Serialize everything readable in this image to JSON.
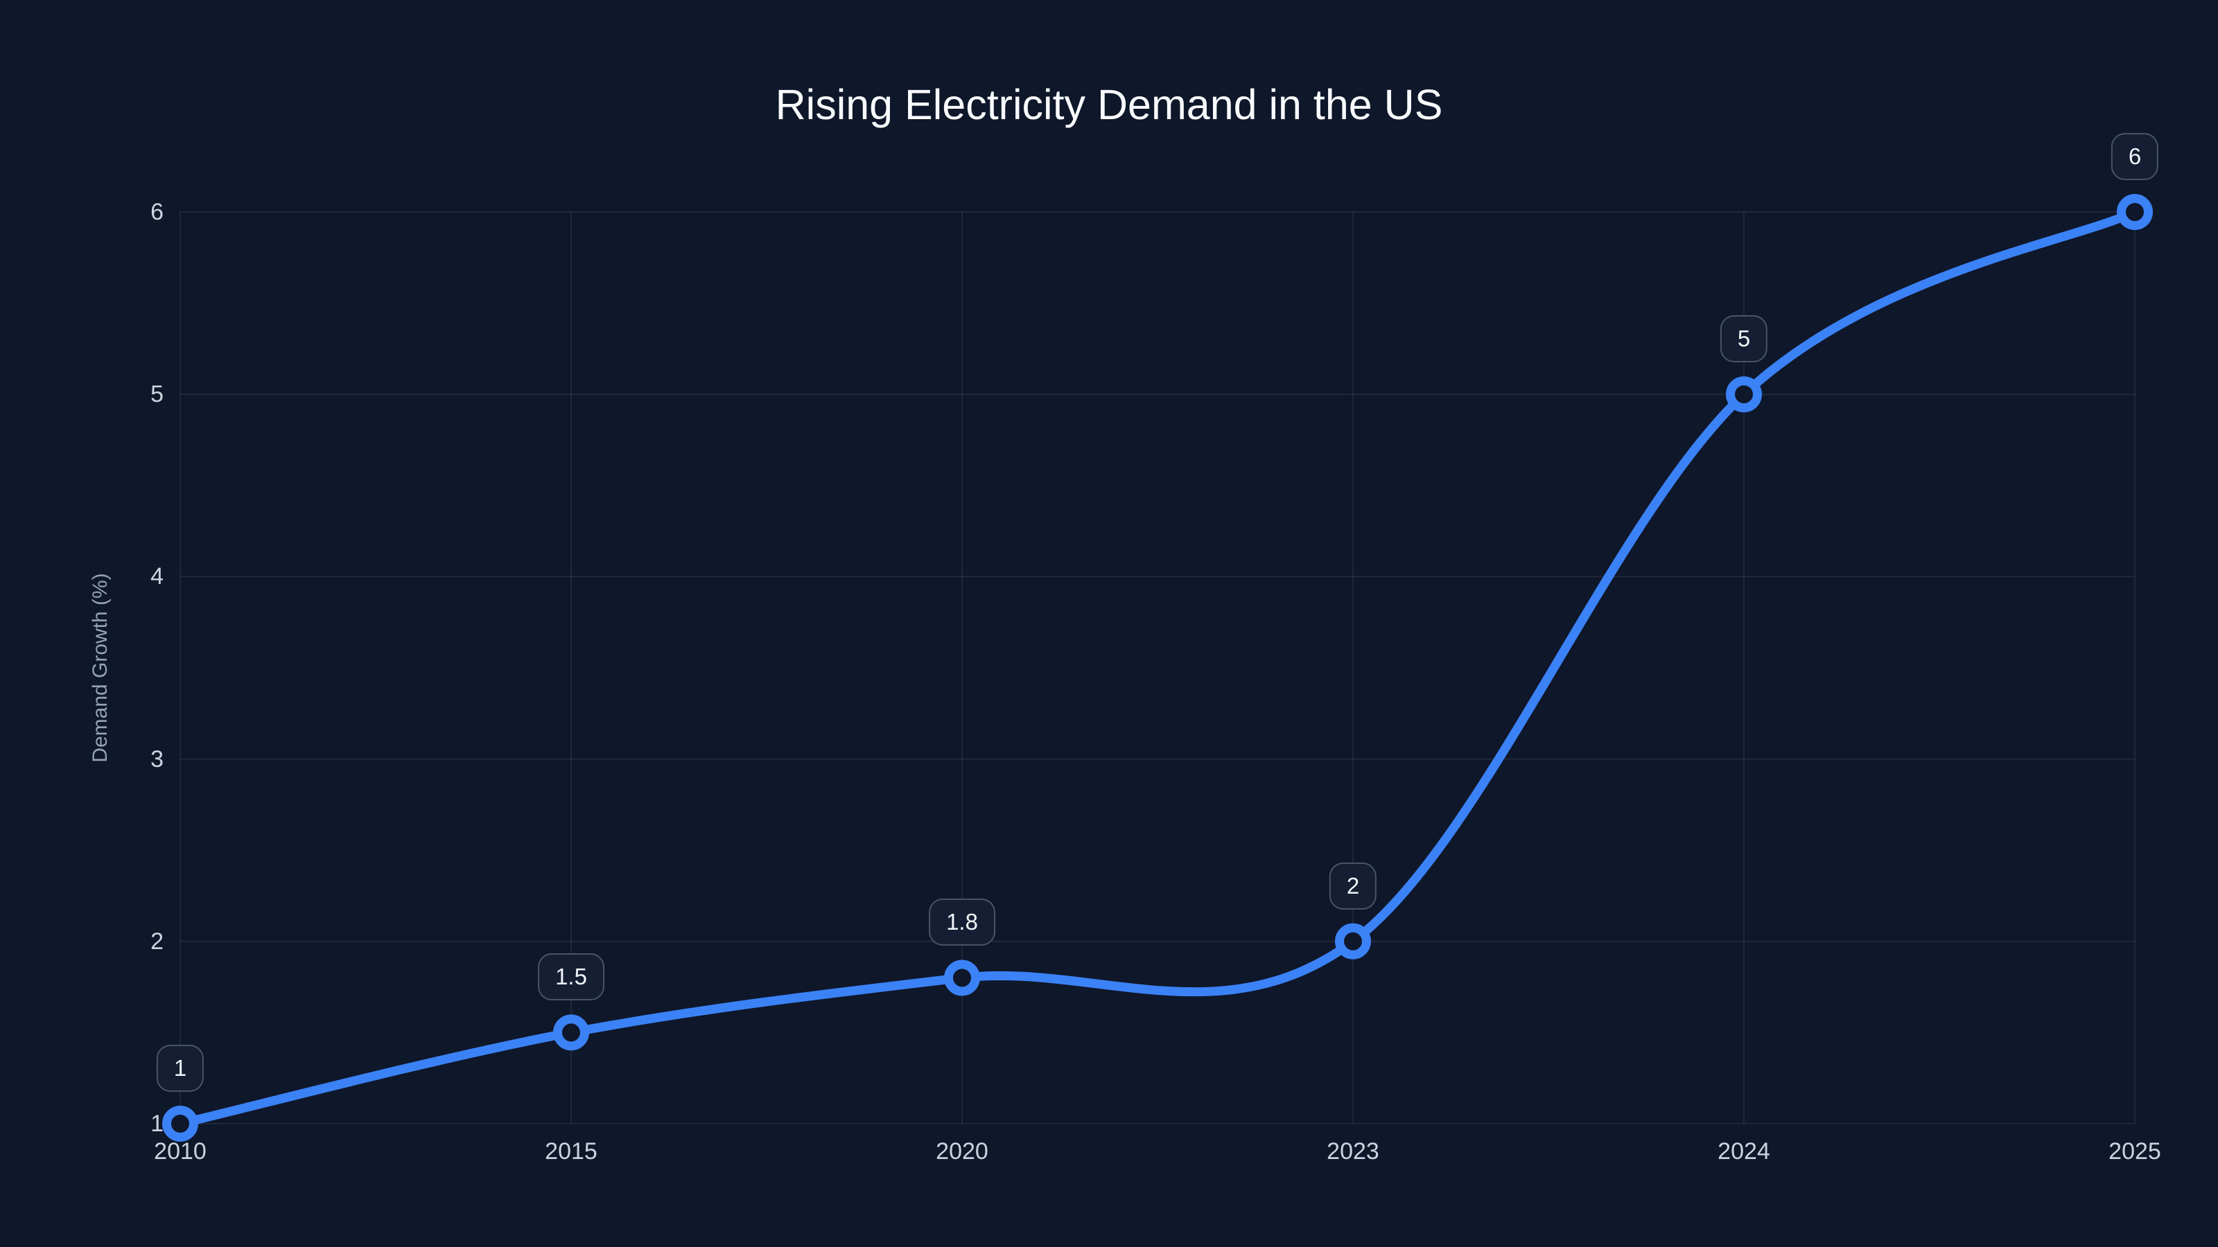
{
  "chart_data": {
    "type": "line",
    "title": "Rising Electricity Demand in the US",
    "xlabel": "",
    "ylabel": "Demand Growth (%)",
    "categories": [
      "2010",
      "2015",
      "2020",
      "2023",
      "2024",
      "2025"
    ],
    "series": [
      {
        "name": "Demand Growth",
        "values": [
          1,
          1.5,
          1.8,
          2,
          5,
          6
        ],
        "point_labels": [
          "1",
          "1.5",
          "1.8",
          "2",
          "5",
          "6"
        ]
      }
    ],
    "ylim": [
      1,
      6
    ],
    "yticks": [
      1,
      2,
      3,
      4,
      5,
      6
    ],
    "grid": true,
    "legend": false,
    "smooth": true,
    "colors": {
      "background": "#0f172a",
      "line": "#3b82f6",
      "marker_ring": "#3b82f6",
      "marker_fill": "#0f172a",
      "grid": "rgba(148,163,184,0.17)",
      "tick_text": "#cbd5e1",
      "axis_title_text": "#94a3b8",
      "badge_bg": "#151e33",
      "badge_border": "#475569",
      "badge_text": "#f1f5f9",
      "title_text": "#f8fafc"
    }
  }
}
